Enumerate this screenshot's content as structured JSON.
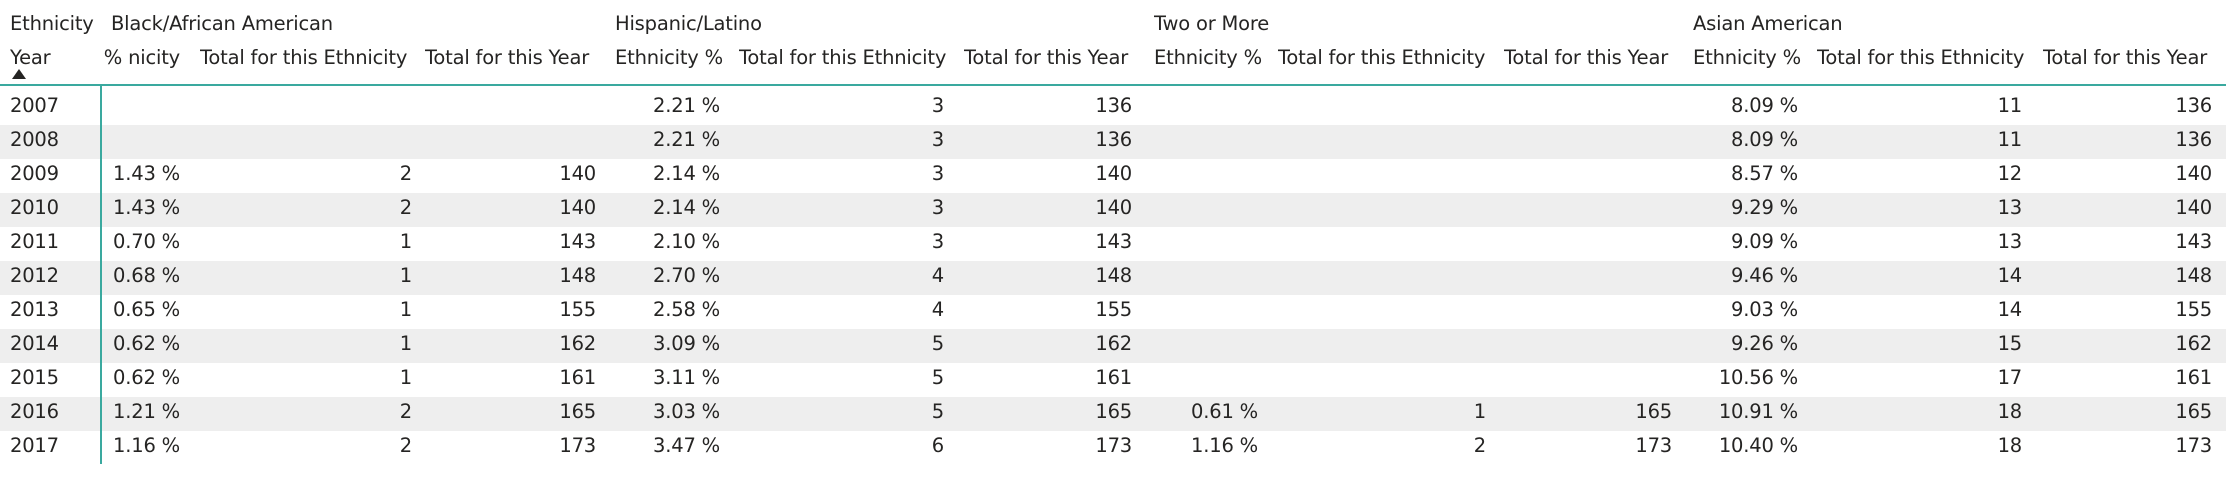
{
  "matrix": {
    "corner": {
      "column_header": "Ethnicity",
      "row_header": "Year"
    },
    "groups": [
      {
        "name": "Black/African American",
        "headers": [
          "nicity %",
          "Total for this Ethnicity",
          "Total for this Year"
        ]
      },
      {
        "name": "Hispanic/Latino",
        "headers": [
          "Ethnicity %",
          "Total for this Ethnicity",
          "Total for this Year"
        ]
      },
      {
        "name": "Two or More",
        "headers": [
          "Ethnicity %",
          "Total for this Ethnicity",
          "Total for this Year"
        ]
      },
      {
        "name": "Asian American",
        "headers": [
          "Ethnicity %",
          "Total for this Ethnicity",
          "Total for this Year"
        ]
      }
    ],
    "rows": [
      {
        "year": "2007",
        "cells": [
          "",
          "",
          "",
          "2.21 %",
          "3",
          "136",
          "",
          "",
          "",
          "8.09 %",
          "11",
          "136"
        ]
      },
      {
        "year": "2008",
        "cells": [
          "",
          "",
          "",
          "2.21 %",
          "3",
          "136",
          "",
          "",
          "",
          "8.09 %",
          "11",
          "136"
        ]
      },
      {
        "year": "2009",
        "cells": [
          "1.43 %",
          "2",
          "140",
          "2.14 %",
          "3",
          "140",
          "",
          "",
          "",
          "8.57 %",
          "12",
          "140"
        ]
      },
      {
        "year": "2010",
        "cells": [
          "1.43 %",
          "2",
          "140",
          "2.14 %",
          "3",
          "140",
          "",
          "",
          "",
          "9.29 %",
          "13",
          "140"
        ]
      },
      {
        "year": "2011",
        "cells": [
          "0.70 %",
          "1",
          "143",
          "2.10 %",
          "3",
          "143",
          "",
          "",
          "",
          "9.09 %",
          "13",
          "143"
        ]
      },
      {
        "year": "2012",
        "cells": [
          "0.68 %",
          "1",
          "148",
          "2.70 %",
          "4",
          "148",
          "",
          "",
          "",
          "9.46 %",
          "14",
          "148"
        ]
      },
      {
        "year": "2013",
        "cells": [
          "0.65 %",
          "1",
          "155",
          "2.58 %",
          "4",
          "155",
          "",
          "",
          "",
          "9.03 %",
          "14",
          "155"
        ]
      },
      {
        "year": "2014",
        "cells": [
          "0.62 %",
          "1",
          "162",
          "3.09 %",
          "5",
          "162",
          "",
          "",
          "",
          "9.26 %",
          "15",
          "162"
        ]
      },
      {
        "year": "2015",
        "cells": [
          "0.62 %",
          "1",
          "161",
          "3.11 %",
          "5",
          "161",
          "",
          "",
          "",
          "10.56 %",
          "17",
          "161"
        ]
      },
      {
        "year": "2016",
        "cells": [
          "1.21 %",
          "2",
          "165",
          "3.03 %",
          "5",
          "165",
          "0.61 %",
          "1",
          "165",
          "10.91 %",
          "18",
          "165"
        ]
      },
      {
        "year": "2017",
        "cells": [
          "1.16 %",
          "2",
          "173",
          "3.47 %",
          "6",
          "173",
          "1.16 %",
          "2",
          "173",
          "10.40 %",
          "18",
          "173"
        ]
      }
    ]
  },
  "icons": {
    "sort": "sort-ascending-icon"
  },
  "colors": {
    "accent_rule": "#3aa99f",
    "band": "#eeeeee",
    "text": "#252423"
  }
}
